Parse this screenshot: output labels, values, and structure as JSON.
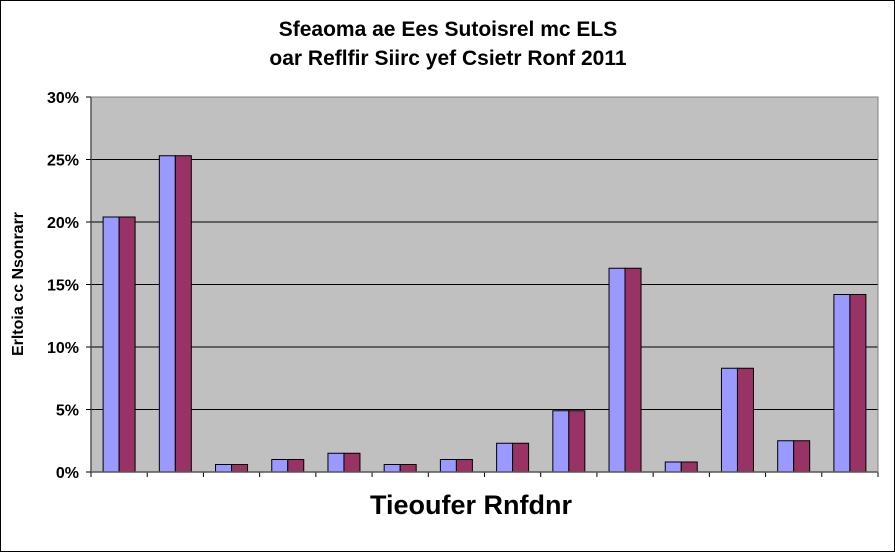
{
  "chart_data": {
    "type": "bar",
    "title_lines": [
      "Sfeaoma ae Ees Sutoisrel mc ELS",
      "oar Reflfir Siirc yef Csietr Ronf 2011"
    ],
    "xlabel": "Tieoufer Rnfdnr",
    "ylabel": "Erltoia cc Nsonrarr",
    "ylim": [
      0,
      0.3
    ],
    "yticks": [
      0,
      0.05,
      0.1,
      0.15,
      0.2,
      0.25,
      0.3
    ],
    "ytick_labels": [
      "0%",
      "5%",
      "10%",
      "15%",
      "20%",
      "25%",
      "30%"
    ],
    "grid": true,
    "legend": "none",
    "categories": [
      "",
      "",
      "",
      "",
      "",
      "",
      "",
      "",
      "",
      "",
      "",
      "",
      "",
      ""
    ],
    "series": [
      {
        "values": [
          0.204,
          0.253,
          0.006,
          0.01,
          0.015,
          0.006,
          0.01,
          0.023,
          0.049,
          0.163,
          0.008,
          0.083,
          0.025,
          0.142
        ]
      },
      {
        "values": [
          0.204,
          0.253,
          0.006,
          0.01,
          0.015,
          0.006,
          0.01,
          0.023,
          0.049,
          0.163,
          0.008,
          0.083,
          0.025,
          0.142
        ]
      }
    ],
    "colors": {
      "series_1": "#9999ff",
      "series_2": "#993366",
      "plot_background": "#c0c0c0",
      "gridline": "#000000"
    }
  }
}
